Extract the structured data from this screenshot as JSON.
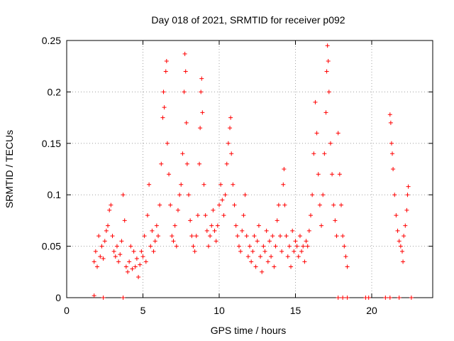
{
  "chart_data": {
    "type": "scatter",
    "title": "Day 018 of 2021, SRMTID for receiver p092",
    "xlabel": "GPS time / hours",
    "ylabel": "SRMTID / TECUs",
    "xlim": [
      0,
      24
    ],
    "ylim": [
      0,
      0.25
    ],
    "xticks": [
      0,
      5,
      10,
      15,
      20
    ],
    "xtick_labels": [
      "0",
      "5",
      "10",
      "15",
      "20"
    ],
    "yticks": [
      0,
      0.05,
      0.1,
      0.15,
      0.2,
      0.25
    ],
    "ytick_labels": [
      "0",
      "0.05",
      "0.1",
      "0.15",
      "0.2",
      "0.25"
    ],
    "grid": true,
    "marker": "+",
    "color": "#ff0000",
    "series": [
      {
        "name": "SRMTID",
        "points": [
          [
            1.8,
            0.002
          ],
          [
            2.4,
            0.0
          ],
          [
            3.7,
            0.0
          ],
          [
            17.8,
            0.0
          ],
          [
            18.1,
            0.0
          ],
          [
            18.4,
            0.0
          ],
          [
            19.6,
            0.0
          ],
          [
            19.8,
            0.0
          ],
          [
            20.9,
            0.0
          ],
          [
            21.2,
            0.0
          ],
          [
            21.8,
            0.0
          ],
          [
            22.6,
            0.0
          ],
          [
            1.8,
            0.035
          ],
          [
            1.9,
            0.045
          ],
          [
            2.0,
            0.03
          ],
          [
            2.1,
            0.06
          ],
          [
            2.2,
            0.04
          ],
          [
            2.3,
            0.05
          ],
          [
            2.4,
            0.038
          ],
          [
            2.5,
            0.055
          ],
          [
            2.6,
            0.065
          ],
          [
            2.7,
            0.07
          ],
          [
            2.8,
            0.085
          ],
          [
            2.9,
            0.09
          ],
          [
            3.0,
            0.06
          ],
          [
            3.1,
            0.045
          ],
          [
            3.2,
            0.04
          ],
          [
            3.3,
            0.05
          ],
          [
            3.4,
            0.035
          ],
          [
            3.5,
            0.042
          ],
          [
            3.6,
            0.055
          ],
          [
            3.7,
            0.1
          ],
          [
            3.8,
            0.075
          ],
          [
            3.9,
            0.03
          ],
          [
            4.0,
            0.025
          ],
          [
            4.1,
            0.035
          ],
          [
            4.2,
            0.05
          ],
          [
            4.3,
            0.028
          ],
          [
            4.4,
            0.045
          ],
          [
            4.5,
            0.03
          ],
          [
            4.6,
            0.038
          ],
          [
            4.7,
            0.02
          ],
          [
            4.8,
            0.032
          ],
          [
            4.9,
            0.045
          ],
          [
            5.0,
            0.04
          ],
          [
            5.1,
            0.06
          ],
          [
            5.2,
            0.035
          ],
          [
            5.3,
            0.08
          ],
          [
            5.4,
            0.11
          ],
          [
            5.5,
            0.05
          ],
          [
            5.6,
            0.065
          ],
          [
            5.7,
            0.045
          ],
          [
            5.8,
            0.055
          ],
          [
            5.9,
            0.07
          ],
          [
            6.0,
            0.06
          ],
          [
            6.1,
            0.09
          ],
          [
            6.2,
            0.13
          ],
          [
            6.3,
            0.175
          ],
          [
            6.35,
            0.2
          ],
          [
            6.4,
            0.185
          ],
          [
            6.5,
            0.22
          ],
          [
            6.55,
            0.23
          ],
          [
            6.6,
            0.15
          ],
          [
            6.7,
            0.12
          ],
          [
            6.8,
            0.09
          ],
          [
            6.9,
            0.06
          ],
          [
            7.0,
            0.055
          ],
          [
            7.1,
            0.07
          ],
          [
            7.2,
            0.05
          ],
          [
            7.3,
            0.085
          ],
          [
            7.4,
            0.1
          ],
          [
            7.5,
            0.11
          ],
          [
            7.6,
            0.14
          ],
          [
            7.7,
            0.2
          ],
          [
            7.75,
            0.237
          ],
          [
            7.8,
            0.22
          ],
          [
            7.85,
            0.17
          ],
          [
            7.9,
            0.13
          ],
          [
            8.0,
            0.1
          ],
          [
            8.1,
            0.075
          ],
          [
            8.2,
            0.06
          ],
          [
            8.3,
            0.05
          ],
          [
            8.4,
            0.045
          ],
          [
            8.5,
            0.06
          ],
          [
            8.6,
            0.08
          ],
          [
            8.7,
            0.13
          ],
          [
            8.75,
            0.165
          ],
          [
            8.8,
            0.2
          ],
          [
            8.85,
            0.213
          ],
          [
            8.9,
            0.18
          ],
          [
            9.0,
            0.11
          ],
          [
            9.1,
            0.08
          ],
          [
            9.2,
            0.065
          ],
          [
            9.3,
            0.05
          ],
          [
            9.4,
            0.06
          ],
          [
            9.5,
            0.07
          ],
          [
            9.6,
            0.085
          ],
          [
            9.7,
            0.065
          ],
          [
            9.8,
            0.055
          ],
          [
            9.9,
            0.07
          ],
          [
            10.0,
            0.09
          ],
          [
            10.1,
            0.11
          ],
          [
            10.2,
            0.095
          ],
          [
            10.3,
            0.08
          ],
          [
            10.4,
            0.1
          ],
          [
            10.5,
            0.13
          ],
          [
            10.6,
            0.15
          ],
          [
            10.7,
            0.165
          ],
          [
            10.75,
            0.175
          ],
          [
            10.8,
            0.14
          ],
          [
            10.9,
            0.11
          ],
          [
            11.0,
            0.09
          ],
          [
            11.1,
            0.07
          ],
          [
            11.2,
            0.06
          ],
          [
            11.3,
            0.05
          ],
          [
            11.4,
            0.045
          ],
          [
            11.5,
            0.065
          ],
          [
            11.6,
            0.08
          ],
          [
            11.7,
            0.1
          ],
          [
            11.8,
            0.06
          ],
          [
            11.9,
            0.04
          ],
          [
            12.0,
            0.05
          ],
          [
            12.1,
            0.035
          ],
          [
            12.2,
            0.045
          ],
          [
            12.3,
            0.06
          ],
          [
            12.4,
            0.03
          ],
          [
            12.5,
            0.055
          ],
          [
            12.6,
            0.07
          ],
          [
            12.7,
            0.04
          ],
          [
            12.8,
            0.025
          ],
          [
            12.9,
            0.05
          ],
          [
            13.0,
            0.045
          ],
          [
            13.1,
            0.065
          ],
          [
            13.2,
            0.035
          ],
          [
            13.3,
            0.055
          ],
          [
            13.4,
            0.04
          ],
          [
            13.5,
            0.06
          ],
          [
            13.6,
            0.03
          ],
          [
            13.7,
            0.05
          ],
          [
            13.8,
            0.075
          ],
          [
            13.9,
            0.09
          ],
          [
            14.0,
            0.06
          ],
          [
            14.1,
            0.045
          ],
          [
            14.2,
            0.11
          ],
          [
            14.25,
            0.125
          ],
          [
            14.3,
            0.09
          ],
          [
            14.4,
            0.06
          ],
          [
            14.5,
            0.04
          ],
          [
            14.6,
            0.05
          ],
          [
            14.7,
            0.03
          ],
          [
            14.8,
            0.065
          ],
          [
            14.9,
            0.045
          ],
          [
            15.0,
            0.055
          ],
          [
            15.1,
            0.05
          ],
          [
            15.2,
            0.04
          ],
          [
            15.3,
            0.06
          ],
          [
            15.4,
            0.045
          ],
          [
            15.5,
            0.05
          ],
          [
            15.6,
            0.035
          ],
          [
            15.7,
            0.055
          ],
          [
            15.8,
            0.05
          ],
          [
            15.9,
            0.065
          ],
          [
            16.0,
            0.08
          ],
          [
            16.1,
            0.1
          ],
          [
            16.2,
            0.14
          ],
          [
            16.3,
            0.19
          ],
          [
            16.4,
            0.16
          ],
          [
            16.5,
            0.12
          ],
          [
            16.6,
            0.09
          ],
          [
            16.7,
            0.07
          ],
          [
            16.8,
            0.1
          ],
          [
            16.9,
            0.14
          ],
          [
            17.0,
            0.18
          ],
          [
            17.05,
            0.22
          ],
          [
            17.1,
            0.245
          ],
          [
            17.15,
            0.23
          ],
          [
            17.2,
            0.2
          ],
          [
            17.3,
            0.15
          ],
          [
            17.4,
            0.12
          ],
          [
            17.5,
            0.09
          ],
          [
            17.6,
            0.075
          ],
          [
            17.7,
            0.06
          ],
          [
            17.8,
            0.16
          ],
          [
            17.9,
            0.12
          ],
          [
            18.0,
            0.09
          ],
          [
            18.1,
            0.06
          ],
          [
            18.2,
            0.05
          ],
          [
            18.3,
            0.04
          ],
          [
            18.4,
            0.03
          ],
          [
            21.2,
            0.178
          ],
          [
            21.25,
            0.17
          ],
          [
            21.3,
            0.15
          ],
          [
            21.35,
            0.14
          ],
          [
            21.4,
            0.125
          ],
          [
            21.5,
            0.1
          ],
          [
            21.6,
            0.08
          ],
          [
            21.7,
            0.065
          ],
          [
            21.8,
            0.055
          ],
          [
            21.9,
            0.05
          ],
          [
            22.0,
            0.045
          ],
          [
            22.05,
            0.035
          ],
          [
            22.1,
            0.06
          ],
          [
            22.2,
            0.07
          ],
          [
            22.3,
            0.085
          ],
          [
            22.35,
            0.1
          ],
          [
            22.4,
            0.108
          ]
        ]
      }
    ]
  }
}
